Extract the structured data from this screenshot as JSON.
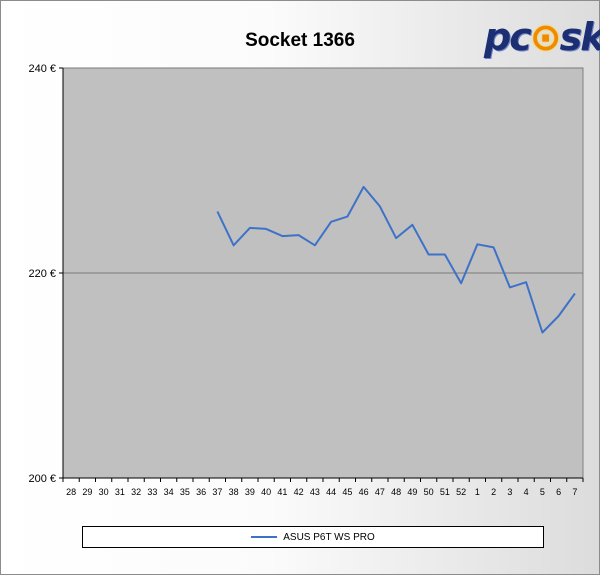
{
  "chart_data": {
    "type": "line",
    "title": "Socket 1366",
    "xlabel": "",
    "ylabel": "",
    "categories": [
      "28",
      "29",
      "30",
      "31",
      "32",
      "33",
      "34",
      "35",
      "36",
      "37",
      "38",
      "39",
      "40",
      "41",
      "42",
      "43",
      "44",
      "45",
      "46",
      "47",
      "48",
      "49",
      "50",
      "51",
      "52",
      "1",
      "2",
      "3",
      "4",
      "5",
      "6",
      "7"
    ],
    "series": [
      {
        "name": "ASUS P6T WS PRO",
        "color": "#3d72c8",
        "values": [
          null,
          null,
          null,
          null,
          null,
          null,
          null,
          null,
          null,
          226.0,
          222.7,
          224.4,
          224.3,
          223.6,
          223.7,
          222.7,
          225.0,
          225.5,
          228.4,
          226.5,
          223.4,
          224.7,
          221.8,
          221.8,
          219.0,
          222.8,
          222.5,
          218.6,
          219.1,
          214.2,
          215.8,
          218.0
        ]
      }
    ],
    "ylim": [
      200,
      240
    ],
    "yticks": [
      200,
      220,
      240
    ],
    "ytick_labels": [
      "200 €",
      "220 €",
      "240 €"
    ],
    "grid": "horizontal-major",
    "legend_position": "bottom",
    "plot_background": "#c0c0c0"
  },
  "logo": {
    "text_a": "pc",
    "text_b": "sk"
  }
}
